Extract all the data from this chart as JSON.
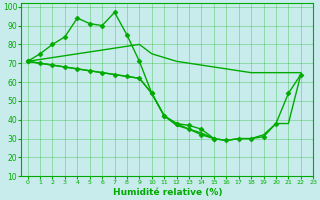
{
  "xlabel": "Humidité relative (%)",
  "background_color": "#c8ecec",
  "grid_color": "#00aa00",
  "line_color": "#00aa00",
  "xlim": [
    -0.5,
    23
  ],
  "ylim": [
    10,
    102
  ],
  "xticks": [
    0,
    1,
    2,
    3,
    4,
    5,
    6,
    7,
    8,
    9,
    10,
    11,
    12,
    13,
    14,
    15,
    16,
    17,
    18,
    19,
    20,
    21,
    22,
    23
  ],
  "yticks": [
    10,
    20,
    30,
    40,
    50,
    60,
    70,
    80,
    90,
    100
  ],
  "series": [
    {
      "x": [
        0,
        1,
        2,
        3,
        4,
        5,
        6,
        7,
        8,
        9,
        10,
        11,
        12,
        13,
        14,
        15
      ],
      "y": [
        71,
        75,
        80,
        84,
        94,
        91,
        90,
        97,
        85,
        71,
        54,
        42,
        38,
        37,
        35,
        30
      ],
      "marker": true
    },
    {
      "x": [
        0,
        1,
        2,
        3,
        4,
        5,
        6,
        7,
        8,
        9,
        10,
        11,
        12,
        13,
        14,
        15,
        16,
        17,
        18,
        19,
        20,
        21,
        22
      ],
      "y": [
        71,
        72,
        73,
        74,
        75,
        76,
        77,
        78,
        79,
        80,
        75,
        73,
        71,
        70,
        69,
        68,
        67,
        66,
        65,
        65,
        65,
        65,
        65
      ],
      "marker": false
    },
    {
      "x": [
        0,
        1,
        2,
        3,
        4,
        5,
        6,
        7,
        8,
        9,
        10,
        11,
        12,
        13,
        14,
        15,
        16,
        17,
        18,
        19,
        20,
        21,
        22
      ],
      "y": [
        71,
        70,
        69,
        68,
        67,
        66,
        65,
        64,
        63,
        62,
        54,
        42,
        38,
        35,
        32,
        30,
        29,
        30,
        30,
        31,
        38,
        54,
        64
      ],
      "marker": true
    },
    {
      "x": [
        0,
        1,
        2,
        3,
        4,
        5,
        6,
        7,
        8,
        9,
        10,
        11,
        12,
        13,
        14,
        15,
        16,
        17,
        18,
        19,
        20,
        21,
        22
      ],
      "y": [
        71,
        70,
        69,
        68,
        67,
        66,
        65,
        64,
        63,
        62,
        54,
        42,
        37,
        35,
        33,
        30,
        29,
        30,
        30,
        32,
        38,
        38,
        64
      ],
      "marker": false
    }
  ]
}
